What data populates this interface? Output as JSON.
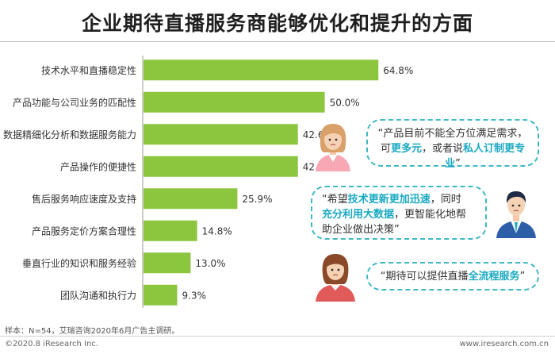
{
  "title": "企业期待直播服务商能够优化和提升的方面",
  "chart_data": {
    "type": "bar",
    "orientation": "horizontal",
    "categories": [
      "技术水平和直播稳定性",
      "产品功能与公司业务的匹配性",
      "数据精细化分析和数据服务能力",
      "产品操作的便捷性",
      "售后服务响应速度及支持",
      "产品服务定价方案合理性",
      "垂直行业的知识和服务经验",
      "团队沟通和执行力"
    ],
    "values": [
      64.8,
      50.0,
      42.6,
      42.6,
      25.9,
      14.8,
      13.0,
      9.3
    ],
    "value_labels": [
      "64.8%",
      "50.0%",
      "42.6%",
      "42.6%",
      "25.9%",
      "14.8%",
      "13.0%",
      "9.3%"
    ],
    "bar_color": "#8cc63f",
    "xlim": [
      0,
      70
    ]
  },
  "quotes": [
    {
      "p1": "“产品目前不能全方位满足需求，",
      "p2": "可",
      "h1": "更多元",
      "p3": "，或者说",
      "h2": "私人订制更专业",
      "p4": "”"
    },
    {
      "p1": "“希望",
      "h1": "技术更新更加迅速",
      "p2": "，同时",
      "h2": "充分利用大数据",
      "p3": "，更智能化地帮",
      "p4": "助企业做出决策”"
    },
    {
      "p1": "“期待可以提供直播",
      "h1": "全流程服务",
      "p2": "”"
    }
  ],
  "accent_color": "#1aa9c3",
  "note": "样本：N=54，艾瑞咨询2020年6月广告主调研。",
  "copyright": "©2020.8 iResearch Inc.",
  "site": "www.iresearch.com.cn"
}
